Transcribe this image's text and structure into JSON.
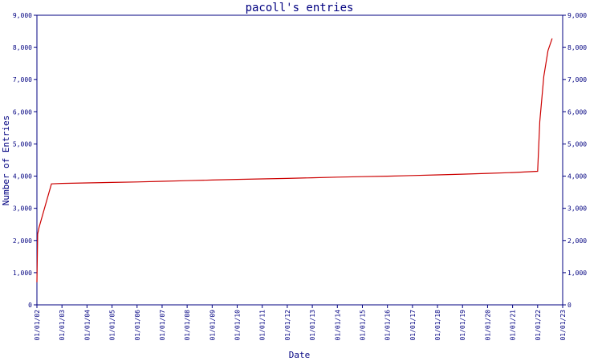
{
  "chart_data": {
    "type": "line",
    "title": "pacoll's entries",
    "xlabel": "Date",
    "ylabel": "Number of Entries",
    "x_tick_labels": [
      "01/01/02",
      "01/01/03",
      "01/01/04",
      "01/01/05",
      "01/01/06",
      "01/01/07",
      "01/01/08",
      "01/01/09",
      "01/01/10",
      "01/01/11",
      "01/01/12",
      "01/01/13",
      "01/01/14",
      "01/01/15",
      "01/01/16",
      "01/01/17",
      "01/01/18",
      "01/01/19",
      "01/01/20",
      "01/01/21",
      "01/01/22",
      "01/01/23"
    ],
    "y_tick_labels": [
      "0",
      "1,000",
      "2,000",
      "3,000",
      "4,000",
      "5,000",
      "6,000",
      "7,000",
      "8,000",
      "9,000"
    ],
    "ylim": [
      0,
      9000
    ],
    "grid": false,
    "right_axis": true,
    "colors": {
      "axis": "#000080",
      "line": "#cc0000",
      "text": "#000080"
    },
    "series": [
      {
        "x": [
          "2002-01-01",
          "2002-01-12",
          "2002-02-01",
          "2002-08-01",
          "2003-01-01",
          "2004-01-01",
          "2005-01-01",
          "2006-01-01",
          "2007-01-01",
          "2008-01-01",
          "2009-01-01",
          "2010-01-01",
          "2011-01-01",
          "2012-01-01",
          "2013-01-01",
          "2014-01-01",
          "2015-01-01",
          "2016-01-01",
          "2017-01-01",
          "2018-01-01",
          "2019-01-01",
          "2020-01-01",
          "2021-01-01",
          "2022-01-01",
          "2022-02-01",
          "2022-04-01",
          "2022-06-01",
          "2022-08-01"
        ],
        "y": [
          700,
          2200,
          2400,
          3760,
          3775,
          3790,
          3805,
          3820,
          3840,
          3860,
          3880,
          3900,
          3915,
          3930,
          3950,
          3970,
          3985,
          4000,
          4020,
          4040,
          4060,
          4085,
          4110,
          4150,
          5700,
          7100,
          7900,
          8280
        ]
      }
    ]
  }
}
